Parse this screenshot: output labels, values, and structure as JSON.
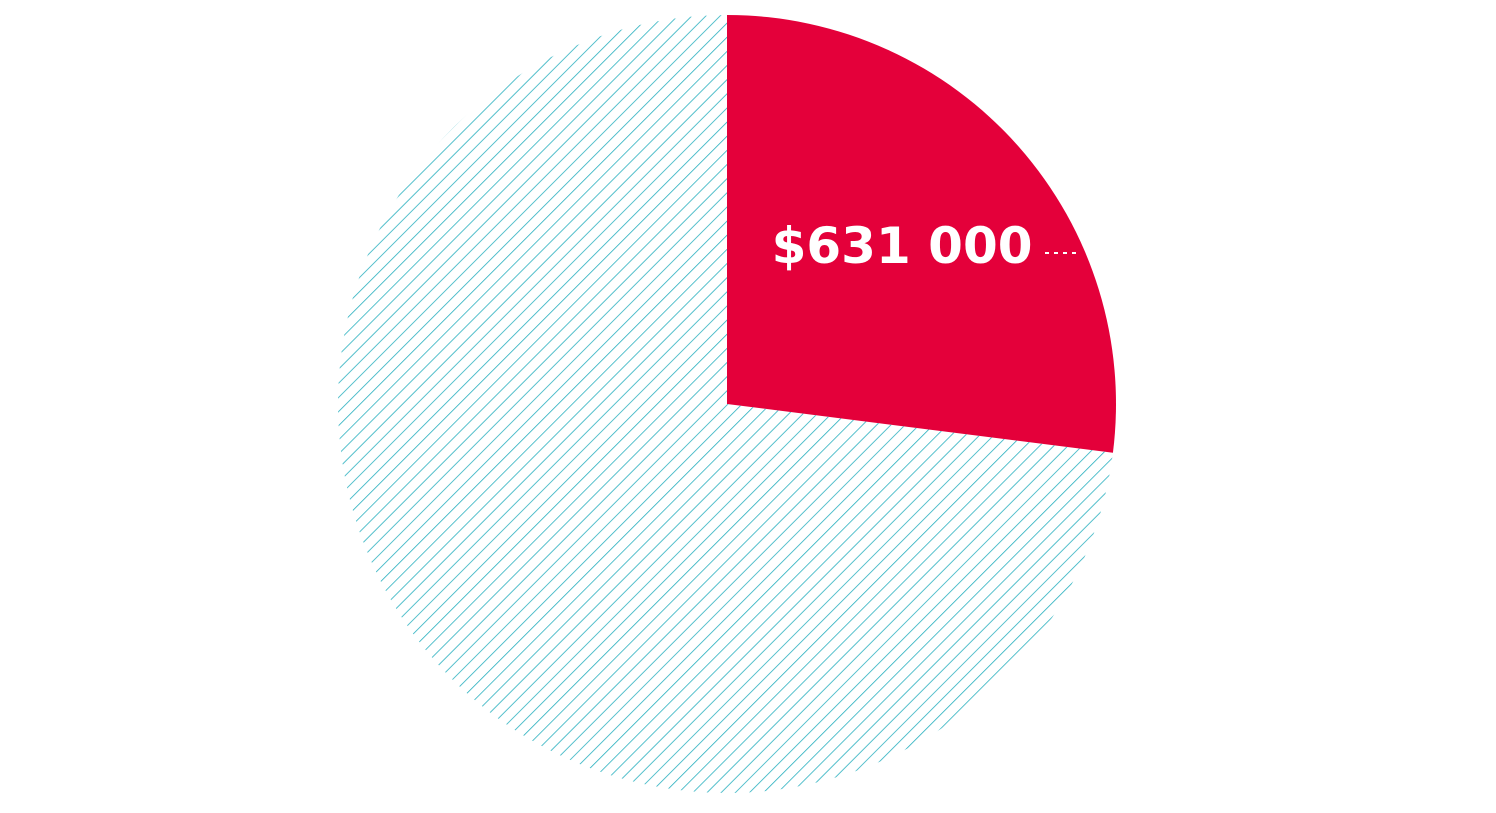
{
  "chart_data": {
    "type": "pie",
    "values": [
      631000,
      1706000
    ],
    "value_labels": [
      "$631 000",
      null
    ],
    "colors": [
      "#e4003a",
      "#2ab0bf"
    ],
    "hatched": [
      false,
      true
    ]
  }
}
